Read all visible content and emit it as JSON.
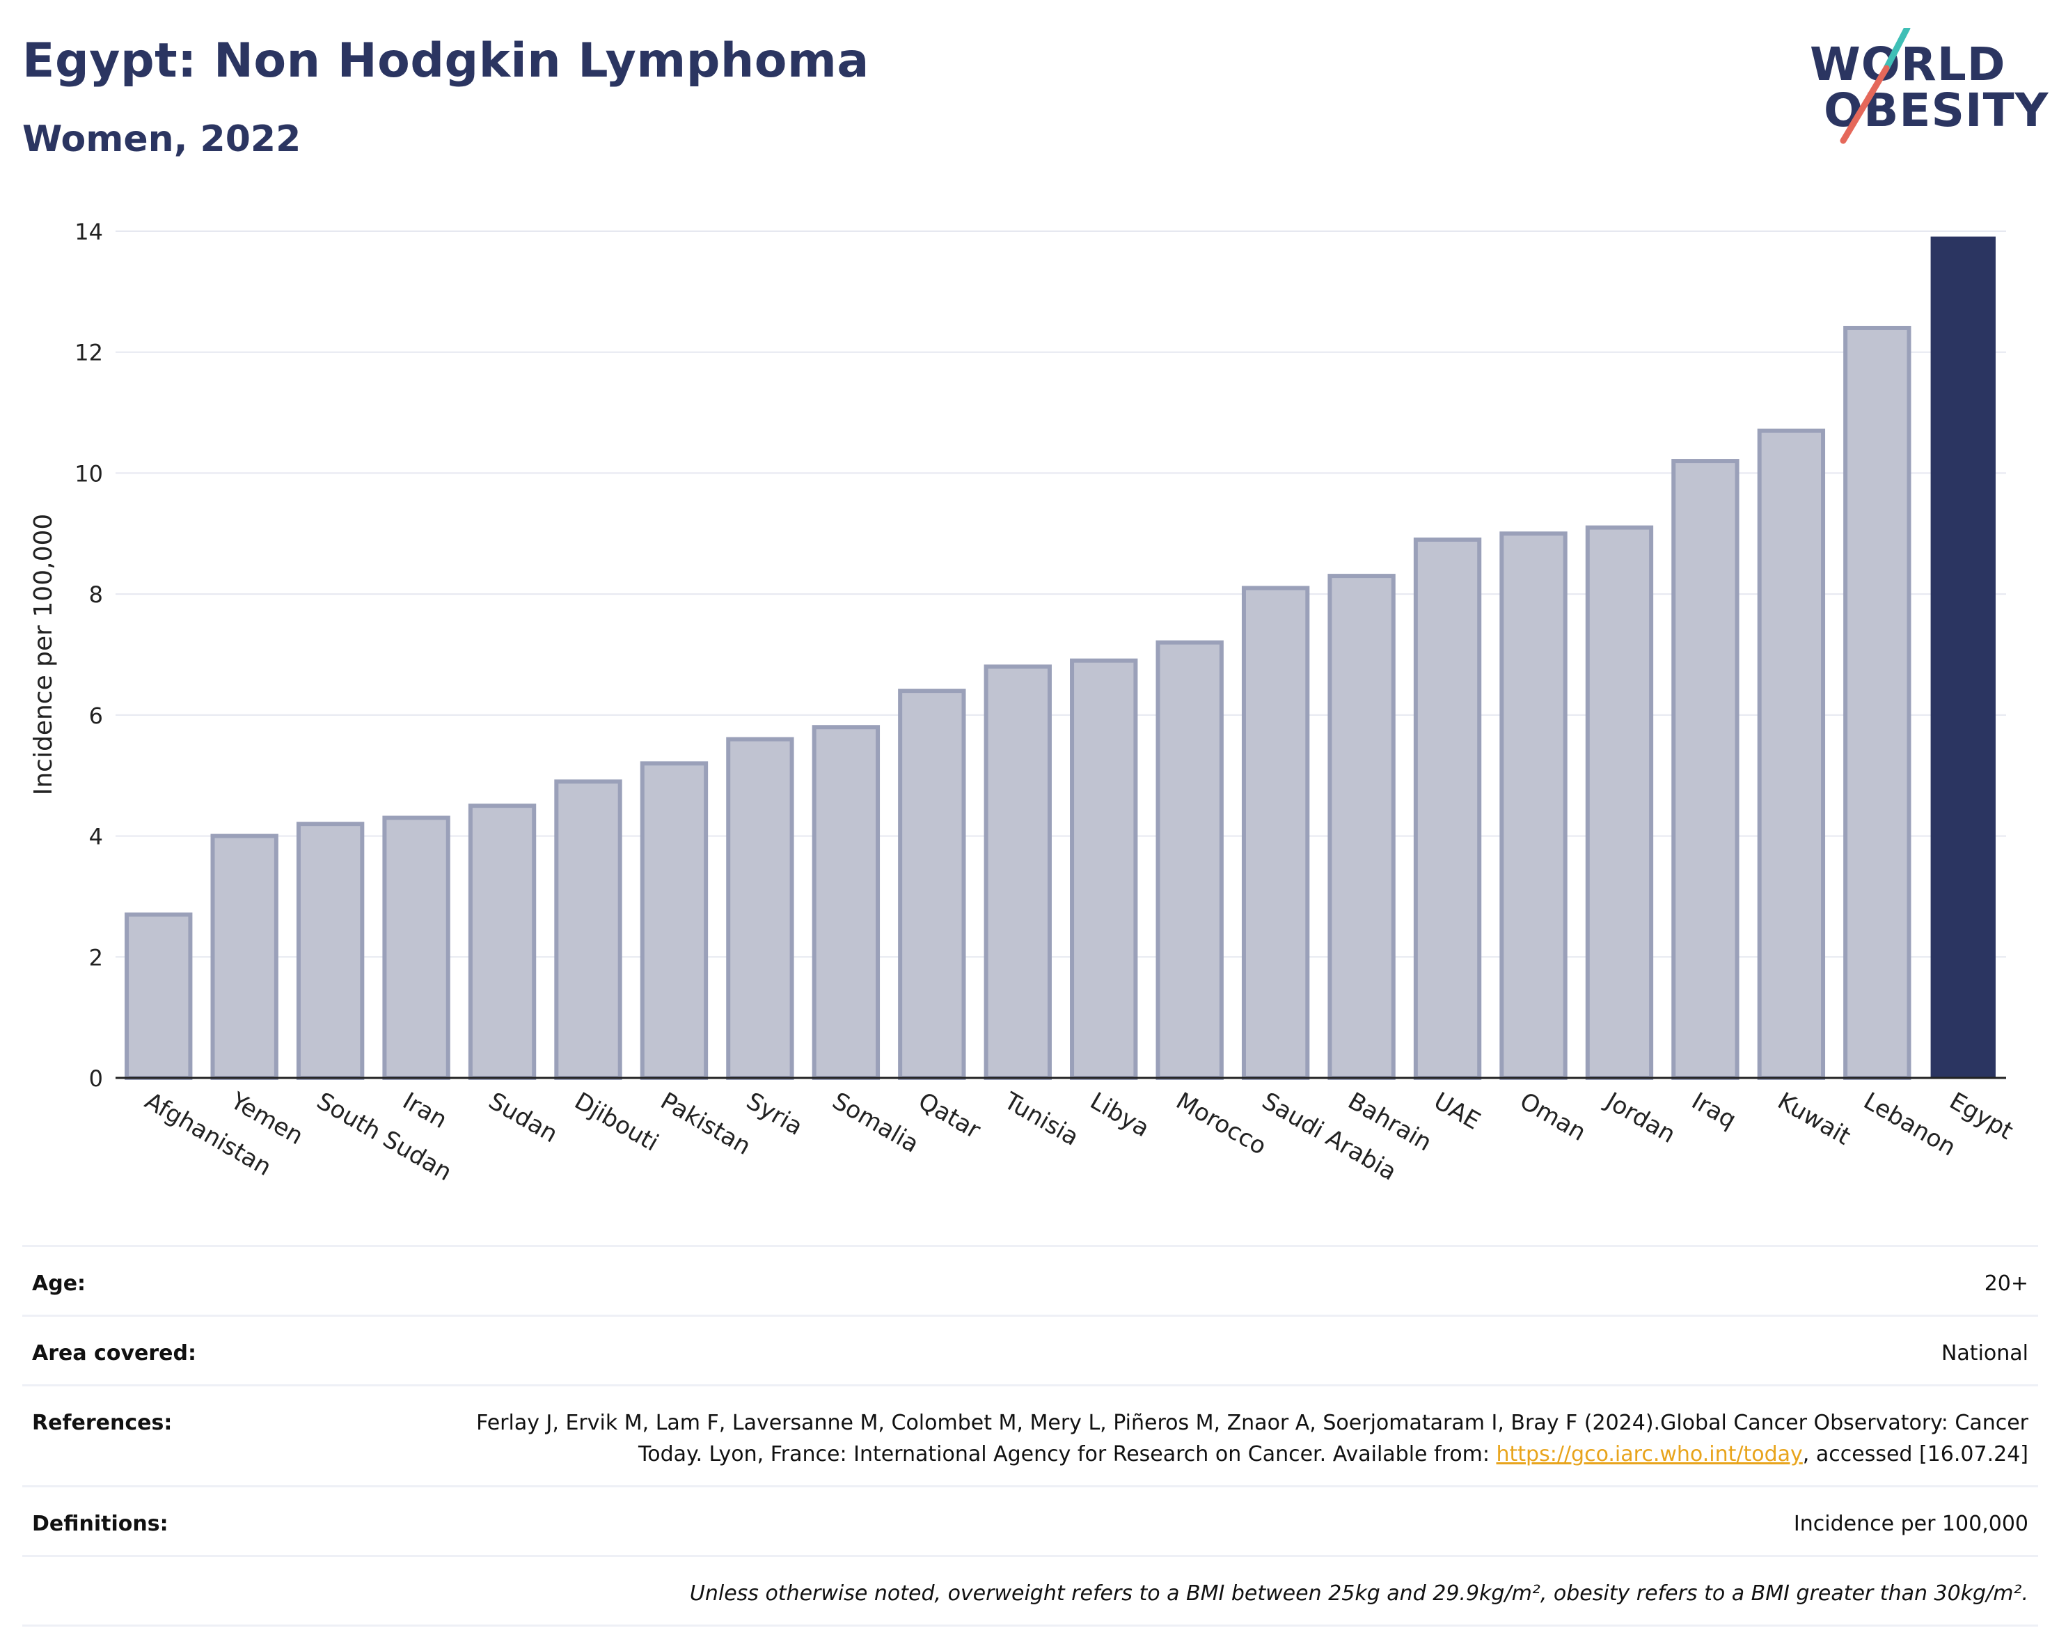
{
  "header": {
    "title": "Egypt: Non Hodgkin Lymphoma",
    "subtitle": "Women, 2022"
  },
  "logo": {
    "line1": "WORLD",
    "line2": "OBESITY"
  },
  "colors": {
    "bar_default": "#c0c3d1",
    "bar_border": "#9aa0b9",
    "bar_highlight": "#2b3561",
    "title": "#2b3561"
  },
  "chart_data": {
    "type": "bar",
    "ylabel": "Incidence per 100,000",
    "ylim": [
      0,
      14
    ],
    "yticks": [
      0,
      2,
      4,
      6,
      8,
      10,
      12,
      14
    ],
    "grid": true,
    "highlight": "Egypt",
    "categories": [
      "Afghanistan",
      "Yemen",
      "South Sudan",
      "Iran",
      "Sudan",
      "Djibouti",
      "Pakistan",
      "Syria",
      "Somalia",
      "Qatar",
      "Tunisia",
      "Libya",
      "Morocco",
      "Saudi Arabia",
      "Bahrain",
      "UAE",
      "Oman",
      "Jordan",
      "Iraq",
      "Kuwait",
      "Lebanon",
      "Egypt"
    ],
    "values": [
      2.7,
      4.0,
      4.2,
      4.3,
      4.5,
      4.9,
      5.2,
      5.6,
      5.8,
      6.4,
      6.8,
      6.9,
      7.2,
      8.1,
      8.3,
      8.9,
      9.0,
      9.1,
      10.2,
      10.7,
      12.4,
      13.9
    ]
  },
  "info": {
    "age_label": "Age:",
    "age_value": "20+",
    "area_label": "Area covered:",
    "area_value": "National",
    "references_label": "References:",
    "references_text": "Ferlay J, Ervik M, Lam F, Laversanne M, Colombet M, Mery L, Piñeros M, Znaor A, Soerjomataram I, Bray F (2024).Global Cancer Observatory: Cancer Today. Lyon, France: International Agency for Research on Cancer. Available from: ",
    "references_link": "https://gco.iarc.who.int/today",
    "references_suffix": ", accessed [16.07.24]",
    "definitions_label": "Definitions:",
    "definitions_value": "Incidence per 100,000",
    "note": "Unless otherwise noted, overweight refers to a BMI between 25kg and 29.9kg/m², obesity refers to a BMI greater than 30kg/m²."
  }
}
